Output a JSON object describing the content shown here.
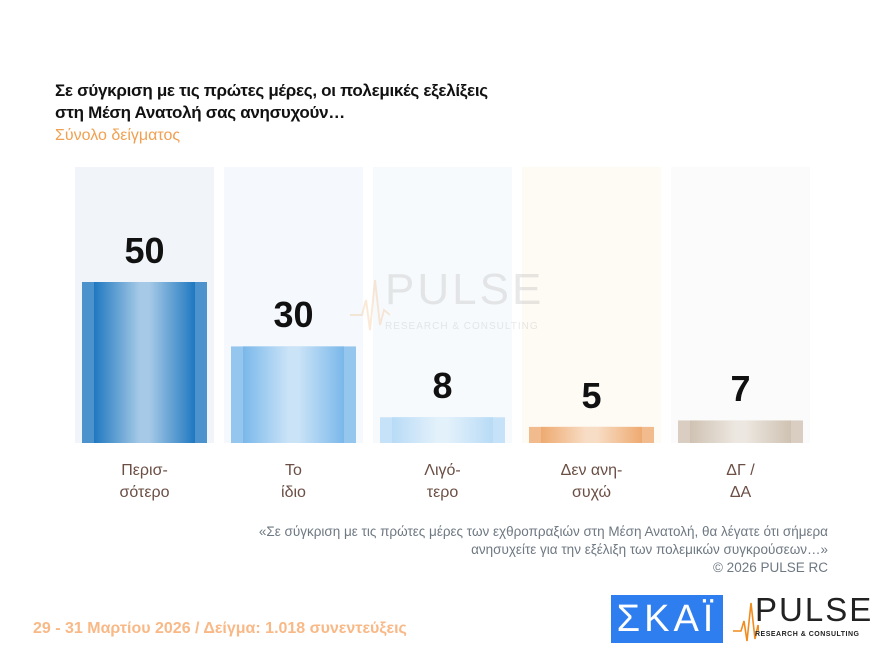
{
  "title_line1": "Σε σύγκριση με τις πρώτες μέρες, οι πολεμικές εξελίξεις",
  "title_line2": "στη Μέση Ανατολή σας ανησυχούν…",
  "subtitle": "Σύνολο δείγματος",
  "chart_data": {
    "type": "bar",
    "title": "Σε σύγκριση με τις πρώτες μέρες, οι πολεμικές εξελίξεις στη Μέση Ανατολή σας ανησυχούν…",
    "categories": [
      [
        "Περισ-",
        "σότερο"
      ],
      [
        "Το",
        "ίδιο"
      ],
      [
        "Λιγό-",
        "τερο"
      ],
      [
        "Δεν ανη-",
        "συχώ"
      ],
      [
        "ΔΓ /",
        "ΔΑ"
      ]
    ],
    "values": [
      50,
      30,
      8,
      5,
      7
    ],
    "value_labels": [
      "50",
      "30",
      "8",
      "5",
      "7"
    ],
    "ylim": [
      0,
      50
    ],
    "grid": false,
    "colors": [
      "#1f78c0",
      "#7ab8ea",
      "#b8dbf6",
      "#eeaa70",
      "#cfc2b2"
    ],
    "column_bg": [
      "#f1f5fa",
      "#f5f9fd",
      "#f7fafd",
      "#fefaf4",
      "#fbfbfb"
    ]
  },
  "watermark": {
    "brand": "PULSE",
    "tagline": "RESEARCH & CONSULTING"
  },
  "note_line1": "«Σε σύγκριση με τις πρώτες μέρες των εχθροπραξιών στη Μέση Ανατολή, θα λέγατε ότι σήμερα",
  "note_line2": "ανησυχείτε για την εξέλιξη των πολεμικών συγκρούσεων…»",
  "copyright": "©  2026  PULSE RC",
  "footer": "29 - 31  Μαρτίου 2026  /  Δείγμα:  1.018 συνεντεύξεις",
  "logos": {
    "skai": "ΣΚΑΪ",
    "pulse": "PULSE",
    "pulse_tagline": "RESEARCH & CONSULTING"
  }
}
